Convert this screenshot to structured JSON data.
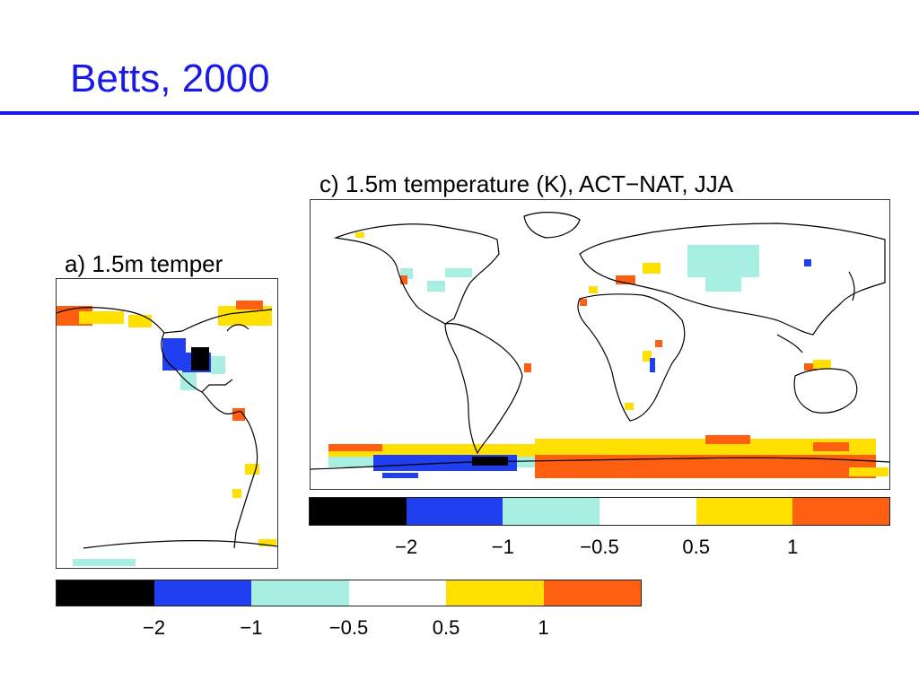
{
  "slide": {
    "title": "Betts, 2000"
  },
  "chart_data": [
    {
      "type": "heatmap",
      "panel": "a",
      "title": "a) 1.5m temper",
      "colorbar": {
        "bins": [
          {
            "color": "#000000"
          },
          {
            "color": "#1f3ff0"
          },
          {
            "color": "#a8efe3"
          },
          {
            "color": "#ffffff"
          },
          {
            "color": "#ffe000"
          },
          {
            "color": "#ff5f10"
          }
        ],
        "ticks": [
          "−2",
          "−1",
          "−0.5",
          "0.5",
          "1"
        ]
      }
    },
    {
      "type": "heatmap",
      "panel": "c",
      "title": "c) 1.5m temperature (K), ACT−NAT, JJA",
      "colorbar": {
        "bins": [
          {
            "color": "#000000"
          },
          {
            "color": "#1f3ff0"
          },
          {
            "color": "#a8efe3"
          },
          {
            "color": "#ffffff"
          },
          {
            "color": "#ffe000"
          },
          {
            "color": "#ff5f10"
          }
        ],
        "ticks": [
          "−2",
          "−1",
          "−0.5",
          "0.5",
          "1"
        ]
      }
    }
  ]
}
